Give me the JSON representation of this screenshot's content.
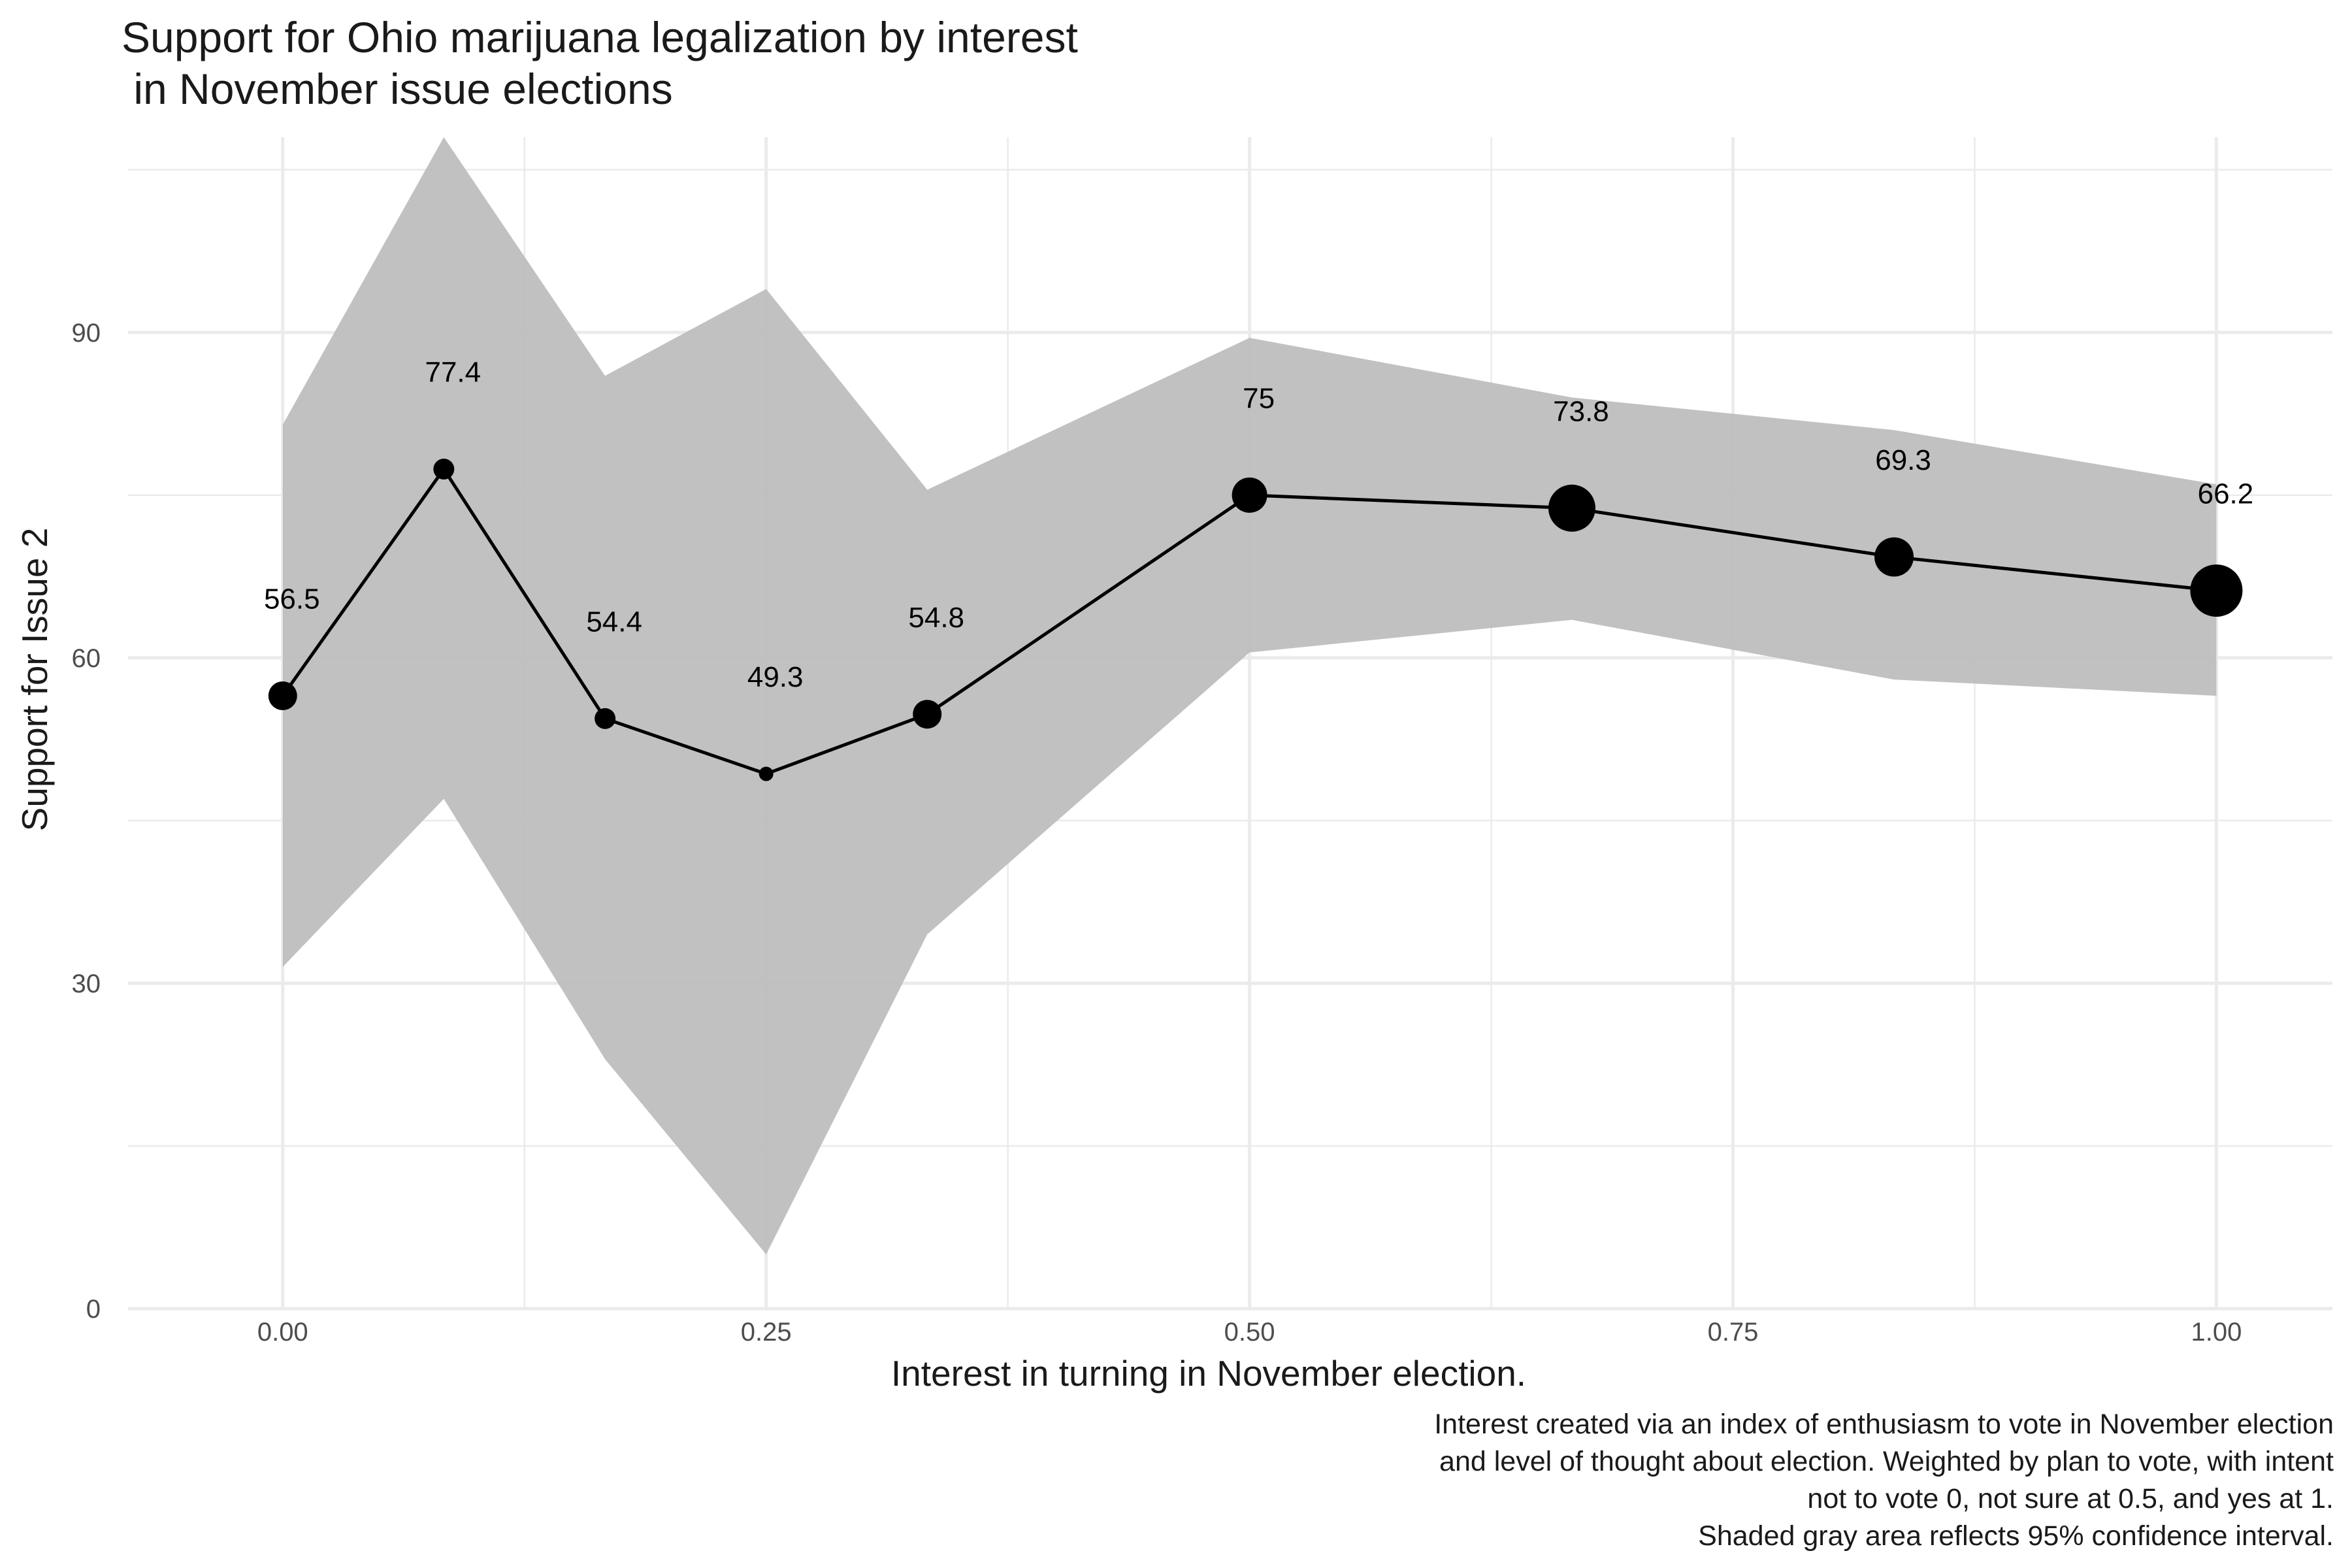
{
  "chart_data": {
    "type": "line",
    "title": "Support for Ohio marijuana legalization by interest\n in November issue elections",
    "xlabel": "Interest in turning in November election.",
    "ylabel": "Support for Issue 2",
    "xlim": [
      -0.08,
      1.06
    ],
    "ylim": [
      0,
      108
    ],
    "x_ticks": [
      0.0,
      0.25,
      0.5,
      0.75,
      1.0
    ],
    "x_tick_labels": [
      "0.00",
      "0.25",
      "0.50",
      "0.75",
      "1.00"
    ],
    "y_ticks": [
      0,
      30,
      60,
      90
    ],
    "y_tick_labels": [
      "0",
      "30",
      "60",
      "90"
    ],
    "grid": true,
    "caption": "Interest created via an index of enthusiasm to vote in November election\nand level of thought about election. Weighted by plan to vote, with intent\nnot to vote 0, not sure at 0.5, and yes at 1.\nShaded gray area reflects 95% confidence interval.",
    "series": [
      {
        "x": [
          0.0,
          0.0833,
          0.1667,
          0.25,
          0.3333,
          0.5,
          0.6667,
          0.8333,
          1.0
        ],
        "values": [
          56.5,
          77.4,
          54.4,
          49.3,
          54.8,
          75,
          73.8,
          69.3,
          66.2
        ],
        "labels": [
          "56.5",
          "77.4",
          "54.4",
          "49.3",
          "54.8",
          "75",
          "73.8",
          "69.3",
          "66.2"
        ],
        "ci_lower": [
          31.5,
          47,
          23,
          5,
          34.5,
          60.5,
          63.5,
          58,
          56.5
        ],
        "ci_upper": [
          81.5,
          108,
          86,
          94,
          75.5,
          89.5,
          84,
          81,
          76
        ],
        "point_size": [
          3,
          2,
          2,
          1,
          3,
          4,
          6,
          5,
          7
        ]
      }
    ],
    "colors": {
      "ribbon": "#bebebe",
      "line": "#000000",
      "grid": "#ebebeb",
      "text": "#4d4d4d"
    }
  }
}
